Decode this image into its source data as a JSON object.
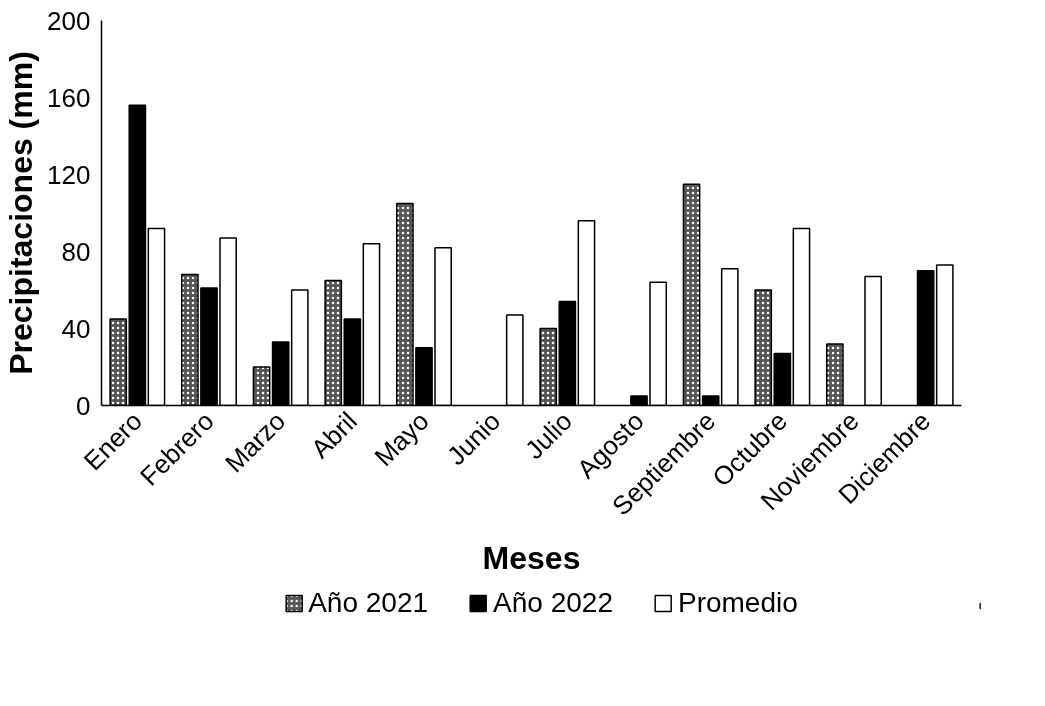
{
  "chart_data": {
    "type": "bar",
    "xlabel": "Meses",
    "ylabel": "Precipitaciones (mm)",
    "categories": [
      "Enero",
      "Febrero",
      "Marzo",
      "Abril",
      "Mayo",
      "Junio",
      "Julio",
      "Agosto",
      "Septiembre",
      "Octubre",
      "Noviembre",
      "Diciembre"
    ],
    "series": [
      {
        "name": "Año 2021",
        "color": "#555555",
        "values": [
          45,
          68,
          20,
          65,
          105,
          null,
          40,
          null,
          115,
          60,
          32,
          null
        ]
      },
      {
        "name": "Año 2022",
        "color": "#000000",
        "values": [
          156,
          61,
          33,
          45,
          30,
          null,
          54,
          5,
          5,
          27,
          null,
          70
        ]
      },
      {
        "name": "Promedio",
        "color": "#ffffff",
        "values": [
          92,
          87,
          60,
          84,
          82,
          47,
          96,
          64,
          71,
          92,
          67,
          73
        ]
      }
    ],
    "ylim": [
      0,
      200
    ],
    "yticks": [
      0,
      40,
      80,
      120,
      160,
      200
    ],
    "grid": false,
    "legend": "bottom"
  }
}
